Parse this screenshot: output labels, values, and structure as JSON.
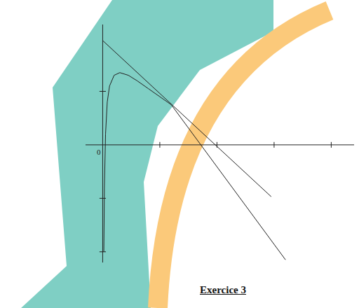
{
  "chart_data": {
    "type": "line",
    "title": "Exercice 3",
    "annotations": [
      "0"
    ],
    "xlim": [
      -0.3,
      4.4
    ],
    "ylim": [
      -2.2,
      2.25
    ],
    "xticks": [
      1,
      2,
      3,
      4
    ],
    "yticks": [
      -2,
      -1,
      1
    ],
    "tick_labels": false,
    "grid": false,
    "series": [
      {
        "color": "#222222",
        "line_style": "solid",
        "x": [
          0.02,
          0.03,
          0.05,
          0.08,
          0.12,
          0.2,
          0.3,
          0.45,
          0.6,
          0.8,
          1.0,
          1.2
        ],
        "values": [
          -2.0,
          -0.8,
          0.2,
          0.8,
          1.1,
          1.3,
          1.35,
          1.3,
          1.2,
          1.05,
          0.9,
          0.75
        ]
      },
      {
        "color": "#222222",
        "line_style": "solid",
        "x": [
          0,
          2.95
        ],
        "values": [
          1.95,
          -0.97
        ]
      },
      {
        "color": "#222222",
        "line_style": "solid",
        "x": [
          1.2,
          3.2
        ],
        "values": [
          0.75,
          -2.15
        ]
      }
    ]
  }
}
